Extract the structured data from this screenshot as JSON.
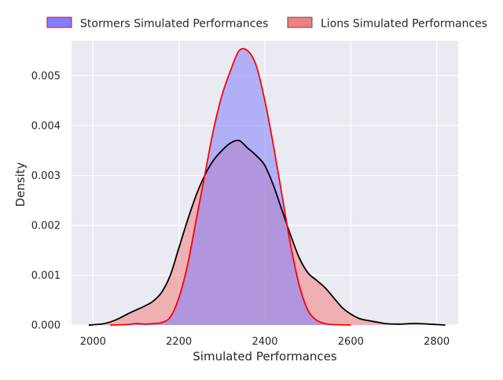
{
  "colors": {
    "plot_background": "#eaeaf2",
    "grid": "#ffffff",
    "stormers_fill": "#8080ff",
    "stormers_line": "#ff0000",
    "lions_fill": "#f08080",
    "lions_line": "#000000",
    "axis_text": "#262626"
  },
  "chart_data": {
    "type": "area",
    "title": "",
    "xlabel": "Simulated Performances",
    "ylabel": "Density",
    "xlim": [
      1950,
      2850
    ],
    "ylim": [
      0,
      0.0057
    ],
    "x_ticks": [
      2000,
      2200,
      2400,
      2600,
      2800
    ],
    "x_tick_labels": [
      "2000",
      "2200",
      "2400",
      "2600",
      "2800"
    ],
    "y_ticks": [
      0.0,
      0.001,
      0.002,
      0.003,
      0.004,
      0.005
    ],
    "y_tick_labels": [
      "0.000",
      "0.001",
      "0.002",
      "0.003",
      "0.004",
      "0.005"
    ],
    "grid": true,
    "legend_position": "top",
    "series": [
      {
        "name": "Stormers Simulated Performances",
        "fill_color": "#8080ff",
        "line_color": "#ff0000",
        "x": [
          2040,
          2080,
          2100,
          2120,
          2140,
          2160,
          2180,
          2200,
          2220,
          2240,
          2260,
          2280,
          2300,
          2320,
          2340,
          2360,
          2380,
          2400,
          2420,
          2440,
          2460,
          2480,
          2500,
          2520,
          2540,
          2560,
          2600
        ],
        "values": [
          0.0,
          1e-05,
          3e-05,
          2e-05,
          3e-05,
          5e-05,
          0.00016,
          0.00055,
          0.0012,
          0.0021,
          0.003,
          0.0039,
          0.0046,
          0.0051,
          0.0055,
          0.0055,
          0.0052,
          0.0045,
          0.0036,
          0.0026,
          0.0016,
          0.0008,
          0.0003,
          0.0001,
          3e-05,
          1e-05,
          0.0
        ]
      },
      {
        "name": "Lions Simulated Performances",
        "fill_color": "#f08080",
        "line_color": "#000000",
        "x": [
          1990,
          2020,
          2040,
          2060,
          2080,
          2100,
          2120,
          2140,
          2160,
          2180,
          2200,
          2220,
          2240,
          2260,
          2280,
          2300,
          2320,
          2340,
          2360,
          2380,
          2400,
          2420,
          2440,
          2460,
          2480,
          2500,
          2520,
          2540,
          2560,
          2580,
          2600,
          2620,
          2640,
          2660,
          2680,
          2700,
          2720,
          2740,
          2760,
          2780,
          2800,
          2820
        ],
        "values": [
          0.0,
          2e-05,
          6e-05,
          0.00013,
          0.00022,
          0.0003,
          0.00038,
          0.00048,
          0.00066,
          0.001,
          0.00155,
          0.0021,
          0.0026,
          0.003,
          0.0033,
          0.0035,
          0.00365,
          0.0037,
          0.00355,
          0.0034,
          0.0032,
          0.0028,
          0.0023,
          0.0018,
          0.00135,
          0.00105,
          0.0009,
          0.00075,
          0.00055,
          0.00035,
          0.00022,
          0.00013,
          9e-05,
          6e-05,
          3e-05,
          2e-05,
          2e-05,
          3e-05,
          3e-05,
          2e-05,
          1e-05,
          0.0
        ]
      }
    ]
  }
}
